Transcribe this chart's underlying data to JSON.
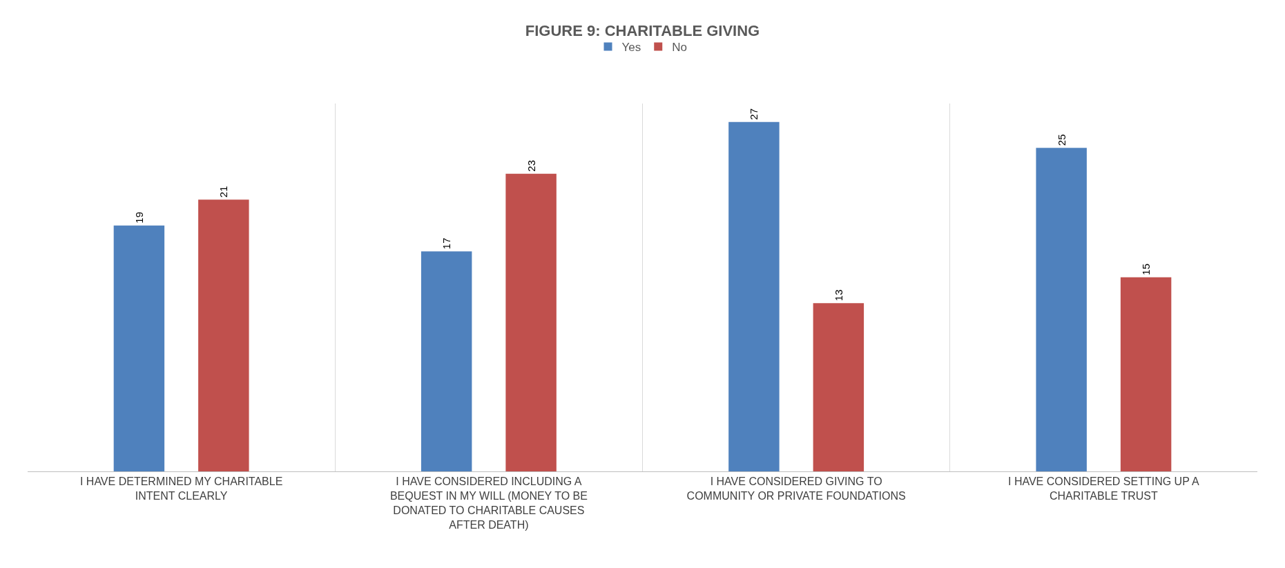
{
  "chart_data": {
    "type": "bar",
    "title": "FIGURE 9: CHARITABLE GIVING",
    "categories": [
      "I HAVE DETERMINED MY CHARITABLE INTENT CLEARLY",
      "I HAVE CONSIDERED INCLUDING A BEQUEST IN MY WILL (MONEY TO BE DONATED TO CHARITABLE CAUSES AFTER DEATH)",
      "I HAVE CONSIDERED GIVING TO COMMUNITY OR PRIVATE FOUNDATIONS",
      "I HAVE CONSIDERED SETTING UP A CHARITABLE TRUST"
    ],
    "series": [
      {
        "name": "Yes",
        "color": "#4f81bd",
        "values": [
          19,
          17,
          27,
          25
        ]
      },
      {
        "name": "No",
        "color": "#c0504d",
        "values": [
          21,
          23,
          13,
          15
        ]
      }
    ],
    "data_labels": true,
    "grid": "x",
    "legend": "top",
    "tick_labels": "x"
  }
}
